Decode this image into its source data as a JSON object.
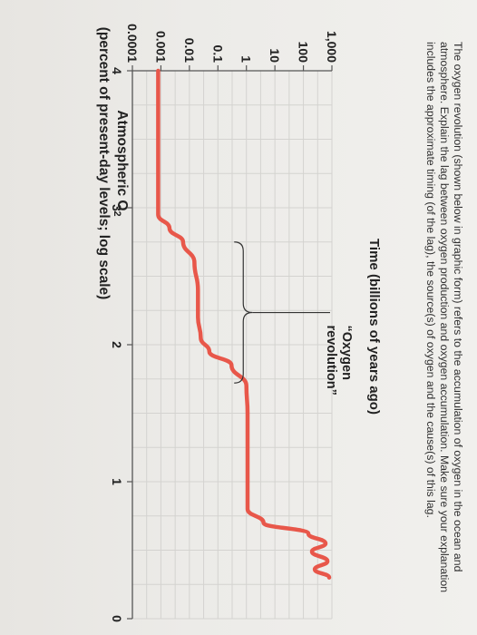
{
  "instructions": "The oxygen revolution (shown below in graphic form) refers to the accumulation of oxygen in the ocean and atmosphere. Explain the lag between oxygen production and oxygen accumulation. Make sure your explanation includes the approximate timing (of the lag), the source(s) of oxygen and the cause(s) of this lag.",
  "chart_data": {
    "type": "line",
    "title_line1": "Atmospheric O",
    "title_sub": "2",
    "title_line2": "(percent of present-day levels; log scale)",
    "xlabel": "Time (billions of years ago)",
    "y_scale": "log",
    "yticks": [
      0.0001,
      0.001,
      0.01,
      0.1,
      1,
      10,
      100,
      1000
    ],
    "ytick_labels": [
      "0.0001",
      "0.001",
      "0.01",
      "0.1",
      "1",
      "10",
      "100",
      "1,000"
    ],
    "xticks": [
      4,
      3,
      2,
      1,
      0
    ],
    "xlim": [
      4,
      0
    ],
    "ylim": [
      0.0001,
      1000
    ],
    "grid": true,
    "annotation": "“Oxygen\nrevolution”",
    "series_color": "#e8574a",
    "x": [
      4.0,
      3.85,
      2.95,
      2.85,
      2.75,
      2.6,
      2.4,
      2.2,
      2.05,
      1.95,
      1.85,
      1.7,
      1.5,
      1.2,
      0.8,
      0.7,
      0.62,
      0.55,
      0.49,
      0.42,
      0.36,
      0.3
    ],
    "y": [
      0.0008,
      0.0008,
      0.0008,
      0.002,
      0.006,
      0.015,
      0.02,
      0.02,
      0.025,
      0.05,
      0.3,
      1,
      1.1,
      1.1,
      1.1,
      4,
      150,
      600,
      200,
      700,
      250,
      800
    ]
  }
}
